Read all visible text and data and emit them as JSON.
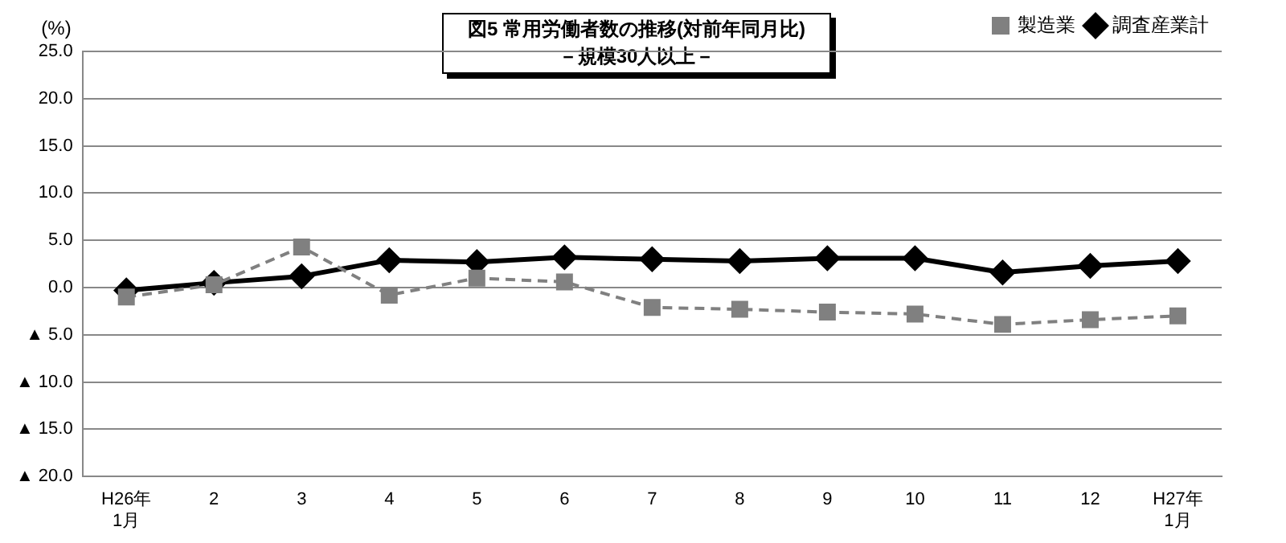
{
  "chart_data": {
    "type": "line",
    "title": "図5 常用労働者数の推移(対前年同月比)",
    "subtitle": "－規模30人以上－",
    "ylabel": "(%)",
    "categories": [
      "H26年\n1月",
      "2",
      "3",
      "4",
      "5",
      "6",
      "7",
      "8",
      "9",
      "10",
      "11",
      "12",
      "H27年\n1月"
    ],
    "series": [
      {
        "name": "調査産業計",
        "color": "#000000",
        "marker": "diamond",
        "line_style": "solid",
        "values": [
          -0.3,
          0.5,
          1.2,
          2.9,
          2.7,
          3.2,
          3.0,
          2.8,
          3.1,
          3.1,
          1.6,
          2.3,
          2.8
        ]
      },
      {
        "name": "製造業",
        "color": "#808080",
        "marker": "square",
        "line_style": "dashed",
        "values": [
          -1.0,
          0.3,
          4.3,
          -0.8,
          1.0,
          0.6,
          -2.1,
          -2.3,
          -2.6,
          -2.8,
          -3.9,
          -3.4,
          -3.0
        ]
      }
    ],
    "ylim": [
      -20,
      25
    ],
    "yticks": [
      {
        "value": 25,
        "label": "25.0"
      },
      {
        "value": 20,
        "label": "20.0"
      },
      {
        "value": 15,
        "label": "15.0"
      },
      {
        "value": 10,
        "label": "10.0"
      },
      {
        "value": 5,
        "label": "5.0"
      },
      {
        "value": 0,
        "label": "0.0"
      },
      {
        "value": -5,
        "label": "▲ 5.0"
      },
      {
        "value": -10,
        "label": "▲ 10.0"
      },
      {
        "value": -15,
        "label": "▲ 15.0"
      },
      {
        "value": -20,
        "label": "▲ 20.0"
      }
    ],
    "grid": "y",
    "legend": "top right"
  }
}
